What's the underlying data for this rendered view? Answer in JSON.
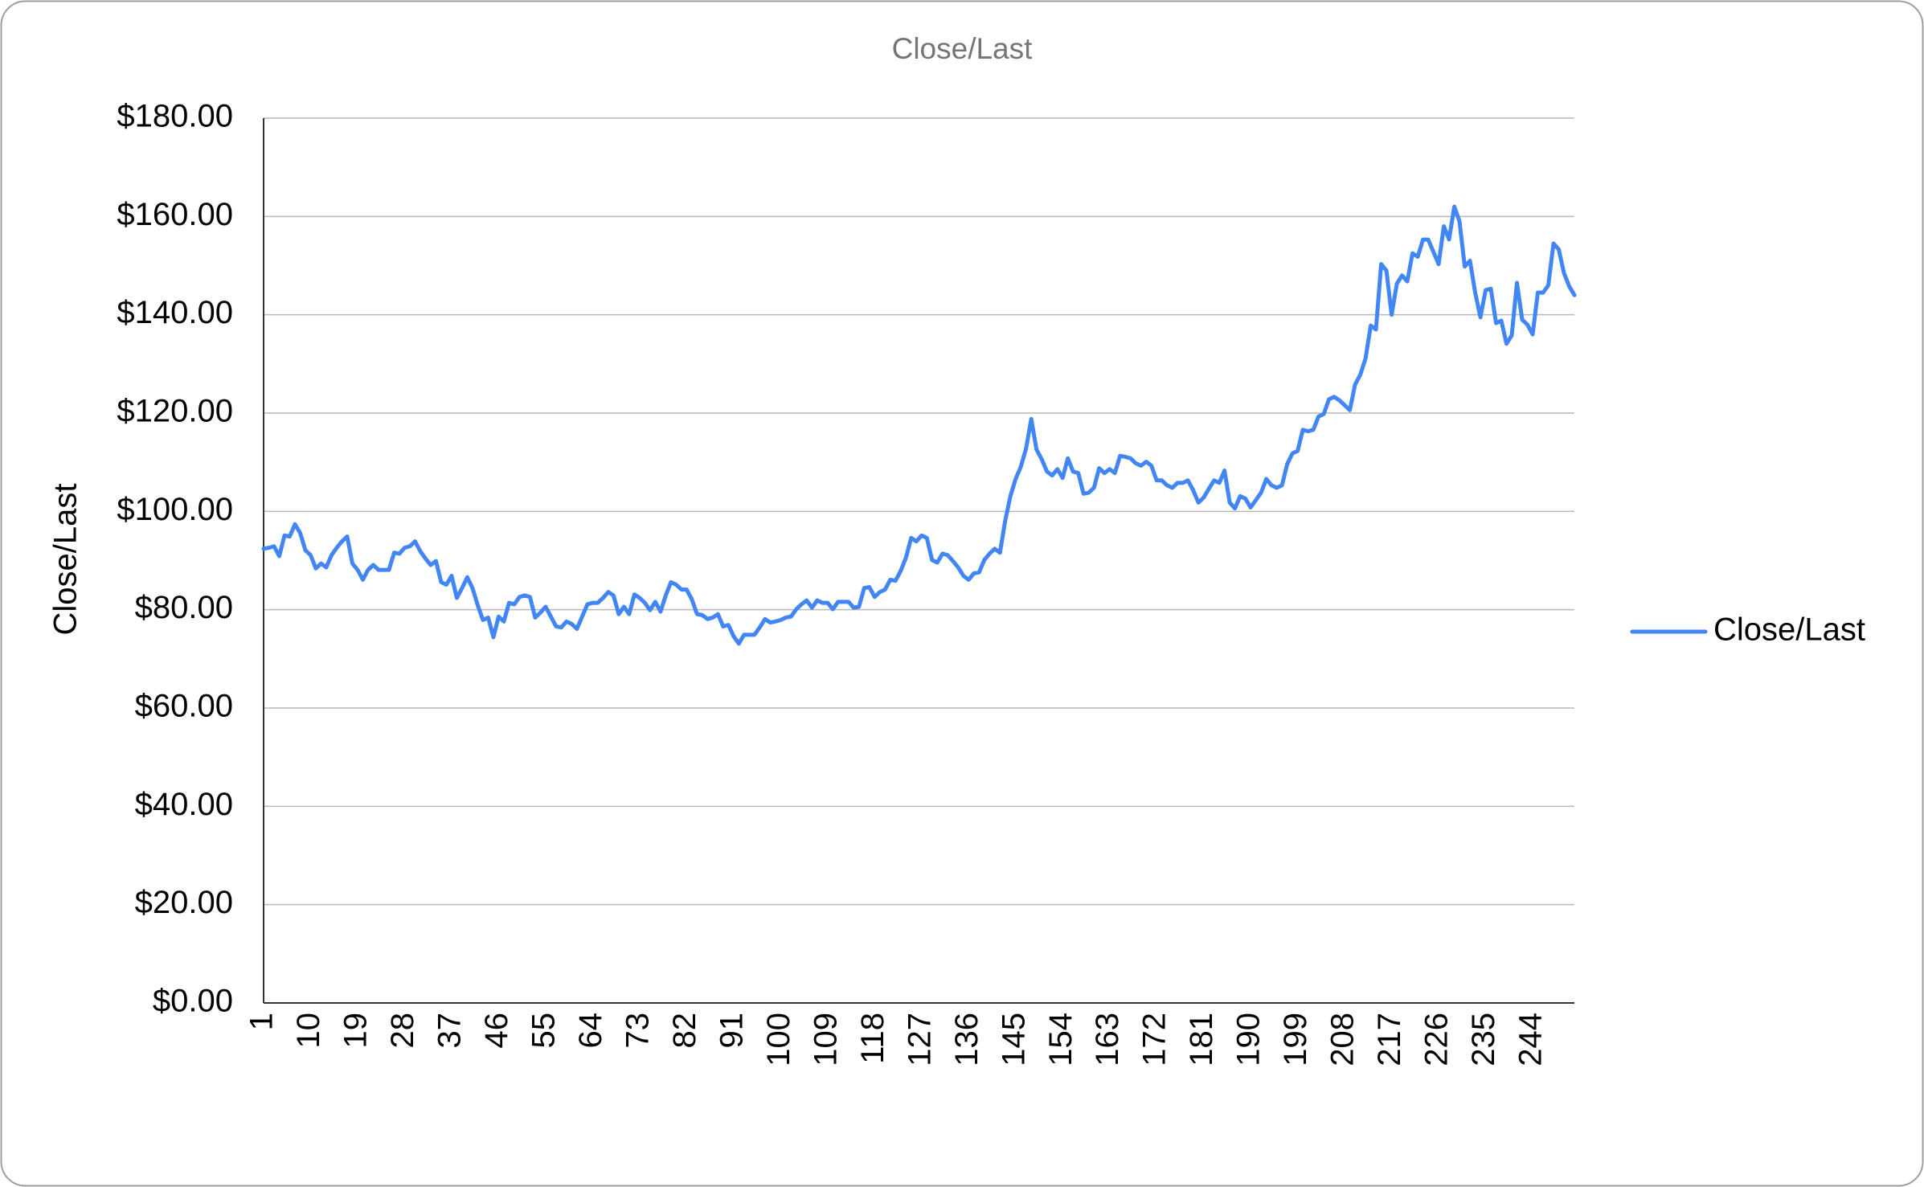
{
  "chart_data": {
    "type": "line",
    "title": "Close/Last",
    "y_label": "Close/Last",
    "categories": [
      "1",
      null,
      null,
      null,
      null,
      null,
      null,
      null,
      null,
      "10",
      null,
      null,
      null,
      null,
      null,
      null,
      null,
      null,
      "19",
      null,
      null,
      null,
      null,
      null,
      null,
      null,
      null,
      "28",
      null,
      null,
      null,
      null,
      null,
      null,
      null,
      null,
      "37",
      null,
      null,
      null,
      null,
      null,
      null,
      null,
      null,
      "46",
      null,
      null,
      null,
      null,
      null,
      null,
      null,
      null,
      "55",
      null,
      null,
      null,
      null,
      null,
      null,
      null,
      null,
      "64",
      null,
      null,
      null,
      null,
      null,
      null,
      null,
      null,
      "73",
      null,
      null,
      null,
      null,
      null,
      null,
      null,
      null,
      "82",
      null,
      null,
      null,
      null,
      null,
      null,
      null,
      null,
      "91",
      null,
      null,
      null,
      null,
      null,
      null,
      null,
      null,
      "100",
      null,
      null,
      null,
      null,
      null,
      null,
      null,
      null,
      "109",
      null,
      null,
      null,
      null,
      null,
      null,
      null,
      null,
      "118",
      null,
      null,
      null,
      null,
      null,
      null,
      null,
      null,
      "127",
      null,
      null,
      null,
      null,
      null,
      null,
      null,
      null,
      "136",
      null,
      null,
      null,
      null,
      null,
      null,
      null,
      null,
      "145",
      null,
      null,
      null,
      null,
      null,
      null,
      null,
      null,
      "154",
      null,
      null,
      null,
      null,
      null,
      null,
      null,
      null,
      "163",
      null,
      null,
      null,
      null,
      null,
      null,
      null,
      null,
      "172",
      null,
      null,
      null,
      null,
      null,
      null,
      null,
      null,
      "181",
      null,
      null,
      null,
      null,
      null,
      null,
      null,
      null,
      "190",
      null,
      null,
      null,
      null,
      null,
      null,
      null,
      null,
      "199",
      null,
      null,
      null,
      null,
      null,
      null,
      null,
      null,
      "208",
      null,
      null,
      null,
      null,
      null,
      null,
      null,
      null,
      "217",
      null,
      null,
      null,
      null,
      null,
      null,
      null,
      null,
      "226",
      null,
      null,
      null,
      null,
      null,
      null,
      null,
      null,
      "235",
      null,
      null,
      null,
      null,
      null,
      null,
      null,
      null,
      "244",
      null,
      null,
      null,
      null,
      null,
      null,
      null,
      null
    ],
    "series": [
      {
        "name": "Close/Last",
        "color": "#4285f4",
        "values": [
          92.4,
          92.6,
          92.9,
          90.9,
          95.1,
          94.9,
          97.4,
          95.6,
          92.1,
          91.1,
          88.4,
          89.4,
          88.6,
          91.1,
          92.6,
          93.9,
          94.9,
          89.4,
          88.1,
          86.1,
          88.1,
          89.1,
          88.1,
          88.1,
          88.1,
          91.6,
          91.4,
          92.6,
          92.9,
          93.9,
          91.9,
          90.4,
          89.1,
          89.9,
          85.6,
          85.1,
          86.9,
          82.4,
          84.4,
          86.6,
          84.4,
          80.9,
          77.9,
          78.4,
          74.4,
          78.6,
          77.6,
          81.4,
          81.1,
          82.6,
          82.9,
          82.6,
          78.4,
          79.4,
          80.6,
          78.6,
          76.6,
          76.4,
          77.6,
          77.1,
          76.1,
          78.6,
          81.1,
          81.4,
          81.4,
          82.4,
          83.6,
          82.9,
          79.1,
          80.6,
          79.1,
          83.1,
          82.4,
          81.4,
          79.9,
          81.6,
          79.6,
          82.9,
          85.6,
          85.1,
          84.1,
          84.1,
          82.1,
          79.1,
          78.9,
          78.1,
          78.4,
          79.1,
          76.6,
          76.9,
          74.6,
          73.1,
          74.9,
          74.9,
          74.9,
          76.4,
          78.1,
          77.4,
          77.6,
          77.9,
          78.4,
          78.6,
          80.1,
          81.1,
          81.9,
          80.4,
          81.9,
          81.4,
          81.4,
          80.1,
          81.6,
          81.6,
          81.6,
          80.4,
          80.6,
          84.4,
          84.6,
          82.6,
          83.6,
          84.1,
          86.1,
          85.9,
          87.9,
          90.6,
          94.6,
          93.9,
          95.1,
          94.6,
          90.1,
          89.6,
          91.4,
          91.1,
          89.9,
          88.6,
          86.9,
          86.1,
          87.4,
          87.6,
          90.1,
          91.4,
          92.4,
          91.6,
          98.1,
          103.1,
          106.6,
          109.1,
          112.8,
          118.8,
          112.6,
          110.6,
          108.1,
          107.3,
          108.6,
          106.8,
          110.8,
          108.1,
          107.8,
          103.6,
          103.8,
          104.8,
          108.8,
          107.8,
          108.6,
          107.8,
          111.3,
          111.1,
          110.8,
          109.8,
          109.3,
          110.1,
          109.3,
          106.3,
          106.3,
          105.3,
          104.8,
          105.8,
          105.8,
          106.3,
          104.3,
          101.8,
          102.8,
          104.6,
          106.3,
          105.8,
          108.3,
          101.8,
          100.6,
          103.1,
          102.6,
          100.8,
          102.3,
          103.8,
          106.6,
          105.3,
          104.8,
          105.3,
          109.6,
          111.8,
          112.3,
          116.6,
          116.3,
          116.6,
          119.3,
          119.8,
          122.8,
          123.3,
          122.6,
          121.6,
          120.6,
          125.8,
          127.8,
          131.1,
          137.8,
          137.0,
          150.3,
          149.0,
          140.0,
          146.3,
          148.0,
          146.8,
          152.5,
          151.8,
          155.3,
          155.3,
          152.8,
          150.3,
          158.0,
          155.3,
          162.0,
          159.0,
          149.8,
          151.0,
          144.5,
          139.5,
          145.0,
          145.3,
          138.3,
          138.8,
          134.1,
          135.8,
          146.5,
          139.0,
          138.0,
          136.0,
          144.5,
          144.5,
          146.0,
          154.5,
          153.3,
          148.5,
          145.8,
          144.0
        ]
      }
    ],
    "ylim": [
      0,
      180
    ],
    "yticks": [
      {
        "value": 0,
        "label": "$0.00"
      },
      {
        "value": 20,
        "label": "$20.00"
      },
      {
        "value": 40,
        "label": "$40.00"
      },
      {
        "value": 60,
        "label": "$60.00"
      },
      {
        "value": 80,
        "label": "$80.00"
      },
      {
        "value": 100,
        "label": "$100.00"
      },
      {
        "value": 120,
        "label": "$120.00"
      },
      {
        "value": 140,
        "label": "$140.00"
      },
      {
        "value": 160,
        "label": "$160.00"
      },
      {
        "value": 180,
        "label": "$180.00"
      }
    ],
    "grid": true,
    "legend": "right"
  }
}
